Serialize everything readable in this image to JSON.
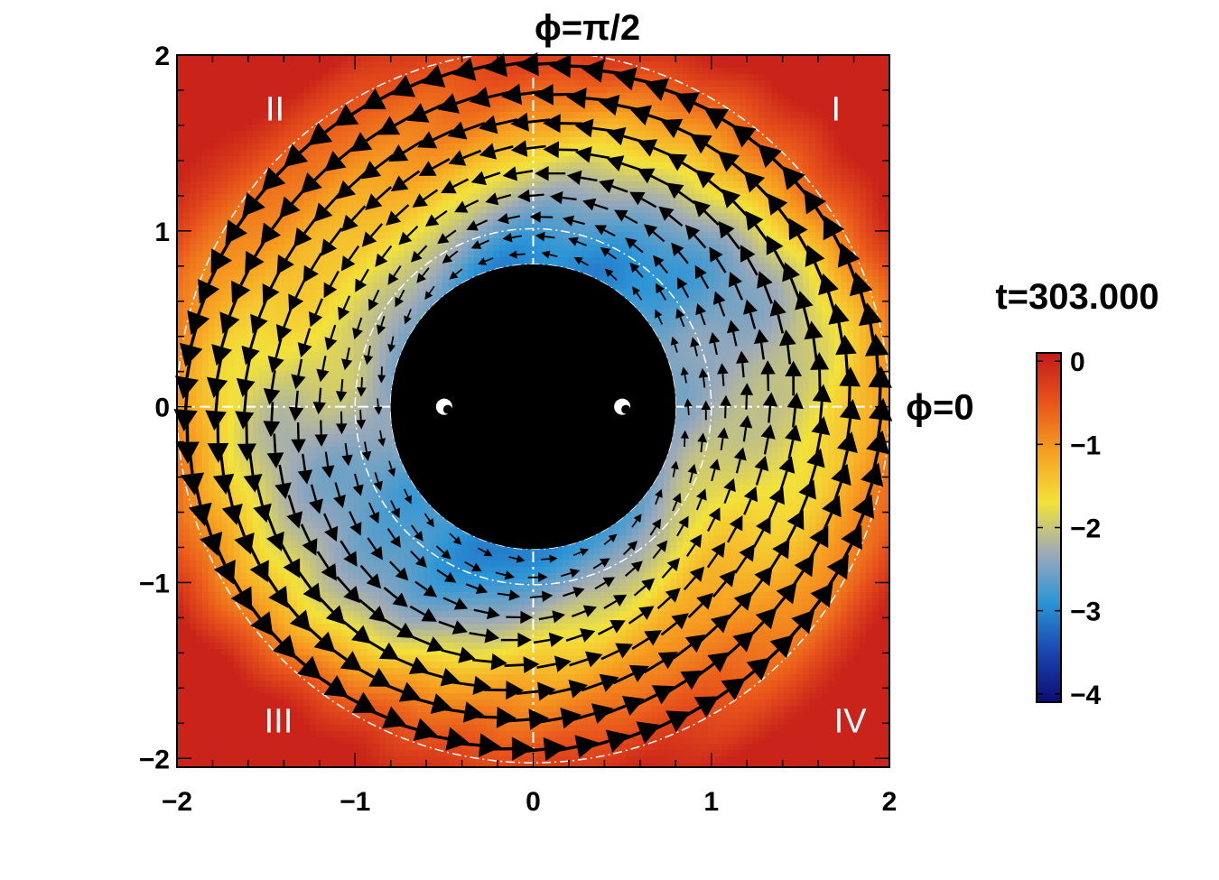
{
  "chart_data": {
    "type": "heatmap",
    "title": "",
    "time_label": "t=303.000",
    "xlim": [
      -2,
      2
    ],
    "ylim": [
      -2.05,
      2
    ],
    "x_ticks": [
      {
        "value": -2,
        "label": "−2"
      },
      {
        "value": -1,
        "label": "−1"
      },
      {
        "value": 0,
        "label": "0"
      },
      {
        "value": 1,
        "label": "1"
      },
      {
        "value": 2,
        "label": "2"
      }
    ],
    "y_ticks": [
      {
        "value": 2,
        "label": "2"
      },
      {
        "value": 1,
        "label": "1"
      },
      {
        "value": 0,
        "label": "0"
      },
      {
        "value": -1,
        "label": "−1"
      },
      {
        "value": -2,
        "label": "−2"
      }
    ],
    "phi_labels": [
      {
        "text": "ϕ=π/2",
        "anchor": "top of y=0 axis"
      },
      {
        "text": "ϕ=0",
        "anchor": "right of x axis"
      }
    ],
    "quadrant_labels": [
      {
        "text": "I",
        "x": 1.7,
        "y": 1.7
      },
      {
        "text": "II",
        "x": -1.45,
        "y": 1.7
      },
      {
        "text": "III",
        "x": -1.43,
        "y": -1.78
      },
      {
        "text": "IV",
        "x": 1.78,
        "y": -1.78
      }
    ],
    "colorbar": {
      "range": [
        -4.1,
        0.1
      ],
      "ticks": [
        {
          "value": 0,
          "label": "0"
        },
        {
          "value": -1,
          "label": "−1"
        },
        {
          "value": -2,
          "label": "−2"
        },
        {
          "value": -3,
          "label": "−3"
        },
        {
          "value": -4,
          "label": "−4"
        }
      ],
      "colors": [
        "#0c0c70",
        "#1a45b0",
        "#2b95d6",
        "#9eaab8",
        "#f3e23a",
        "#f7a021",
        "#e8541b",
        "#c41a1a"
      ]
    },
    "masked_region": {
      "shape": "circle",
      "center": [
        0,
        0
      ],
      "radius": 0.8,
      "color": "#000000"
    },
    "reference_circles": [
      0.8,
      1.0,
      2.0
    ],
    "binary_points": [
      {
        "x": -0.5,
        "y": 0
      },
      {
        "x": 0.5,
        "y": 0
      }
    ],
    "field": {
      "description_free": true,
      "value_range": [
        -3.3,
        0.0
      ],
      "spiral_arms": 2,
      "velocity_field": "counter-clockwise circulating, speed increasing with radius"
    },
    "grid": false
  }
}
